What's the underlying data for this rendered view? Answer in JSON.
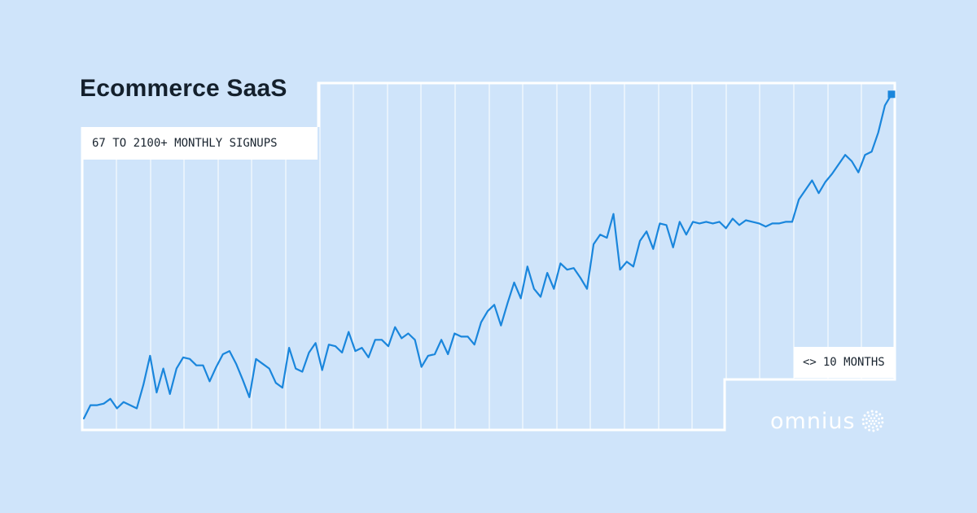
{
  "title": "Ecommerce SaaS",
  "signups_label": "67 TO 2100+ MONTHLY SIGNUPS",
  "duration_label": "10 MONTHS",
  "duration_icon": "<>",
  "brand": "omnius",
  "brand_icon": "dotted-sunburst-icon",
  "colors": {
    "background": "#cfe4fa",
    "line": "#1a86dc",
    "frame": "#ffffff",
    "title": "#14202c"
  },
  "chart_data": {
    "type": "line",
    "title": "Ecommerce SaaS",
    "xlabel": "",
    "ylabel": "",
    "grid": true,
    "ylim": [
      0,
      2150
    ],
    "series": [
      {
        "values": [
          67,
          150,
          150,
          160,
          190,
          130,
          170,
          150,
          130,
          280,
          460,
          230,
          380,
          220,
          380,
          450,
          440,
          400,
          400,
          300,
          390,
          470,
          490,
          410,
          310,
          200,
          440,
          410,
          380,
          290,
          260,
          510,
          380,
          360,
          480,
          540,
          370,
          530,
          520,
          480,
          610,
          490,
          510,
          450,
          560,
          560,
          520,
          640,
          570,
          600,
          560,
          390,
          460,
          470,
          560,
          470,
          600,
          580,
          580,
          530,
          670,
          740,
          780,
          650,
          790,
          920,
          820,
          1020,
          880,
          830,
          980,
          880,
          1040,
          1000,
          1010,
          950,
          880,
          1160,
          1220,
          1200,
          1350,
          1000,
          1050,
          1020,
          1180,
          1240,
          1130,
          1290,
          1280,
          1140,
          1300,
          1220,
          1300,
          1290,
          1300,
          1290,
          1300,
          1260,
          1320,
          1280,
          1310,
          1300,
          1290,
          1270,
          1290,
          1290,
          1300,
          1300,
          1440,
          1500,
          1560,
          1480,
          1550,
          1600,
          1660,
          1720,
          1680,
          1610,
          1720,
          1740,
          1860,
          2030,
          2100
        ]
      }
    ]
  }
}
